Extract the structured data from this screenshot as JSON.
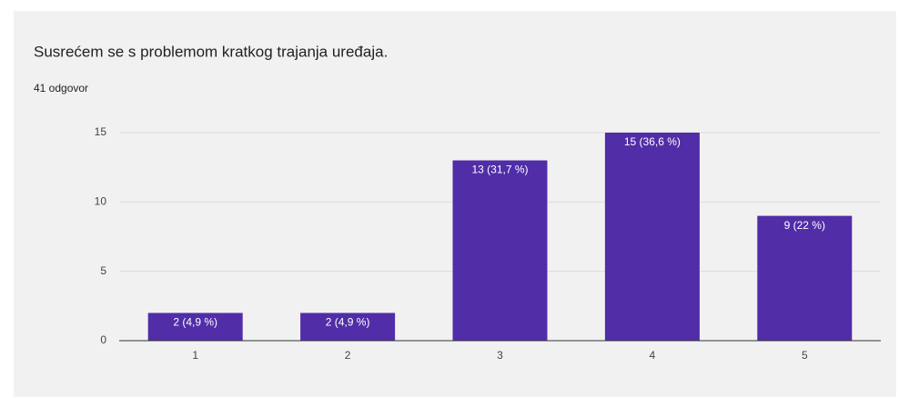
{
  "chart_data": {
    "type": "bar",
    "title": "Susrećem se s problemom kratkog trajanja uređaja.",
    "subtitle": "41 odgovor",
    "categories": [
      "1",
      "2",
      "3",
      "4",
      "5"
    ],
    "values": [
      2,
      2,
      13,
      15,
      9
    ],
    "value_labels": [
      "2 (4,9 %)",
      "2 (4,9 %)",
      "13 (31,7 %)",
      "15 (36,6 %)",
      "9 (22 %)"
    ],
    "color": "#512da8",
    "ylim": [
      0,
      15
    ],
    "yticks": [
      0,
      5,
      10,
      15
    ],
    "grid": true
  }
}
